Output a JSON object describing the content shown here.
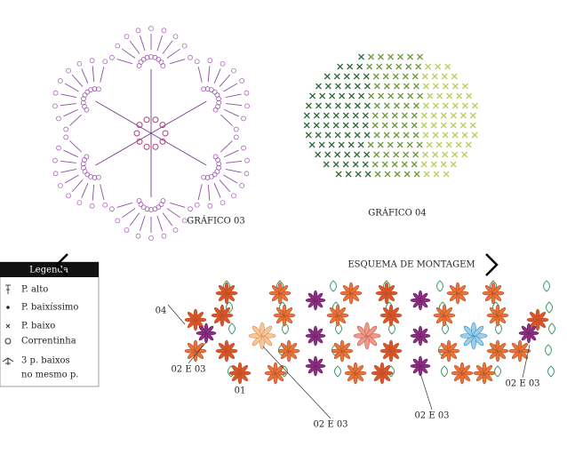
{
  "charts": [
    {
      "label": "GRÁFICO 03"
    },
    {
      "label": "GRÁFICO 04"
    }
  ],
  "legend": {
    "title": "Legenda",
    "items": [
      "P. alto",
      "P. baixíssimo",
      "P. baixo",
      "Correntinha",
      "3 p. baixos",
      "no mesmo p."
    ]
  },
  "assembly": {
    "title": "ESQUEMA DE MONTAGEM",
    "labels": [
      "04",
      "02 E 03",
      "01",
      "02 E 03",
      "02 E 03",
      "02 E 03"
    ]
  }
}
